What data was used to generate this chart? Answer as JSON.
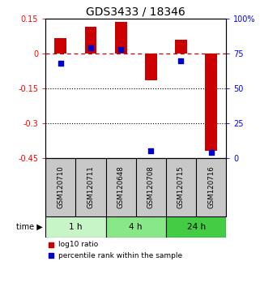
{
  "title": "GDS3433 / 18346",
  "samples": [
    "GSM120710",
    "GSM120711",
    "GSM120648",
    "GSM120708",
    "GSM120715",
    "GSM120716"
  ],
  "log10_ratio": [
    0.065,
    0.115,
    0.135,
    -0.115,
    0.06,
    -0.42
  ],
  "percentile_rank": [
    68,
    79,
    78,
    5,
    70,
    4
  ],
  "ylim_left": [
    -0.45,
    0.15
  ],
  "ylim_right": [
    0,
    100
  ],
  "yticks_left": [
    0.15,
    0.0,
    -0.15,
    -0.3,
    -0.45
  ],
  "ytick_labels_left": [
    "0.15",
    "0",
    "-0.15",
    "-0.3",
    "-0.45"
  ],
  "yticks_right": [
    100,
    75,
    50,
    25,
    0
  ],
  "ytick_labels_right": [
    "100%",
    "75",
    "50",
    "25",
    "0"
  ],
  "time_groups": [
    {
      "label": "1 h",
      "start": 0,
      "end": 2,
      "color": "#c8f5c8"
    },
    {
      "label": "4 h",
      "start": 2,
      "end": 4,
      "color": "#88e888"
    },
    {
      "label": "24 h",
      "start": 4,
      "end": 6,
      "color": "#44cc44"
    }
  ],
  "bar_color": "#cc0000",
  "dot_color": "#0000cc",
  "bar_width": 0.4,
  "dot_size": 18,
  "hline_color": "#cc0000",
  "dotted_line_color": "#000000",
  "legend_red_label": "log10 ratio",
  "legend_blue_label": "percentile rank within the sample",
  "time_label": "time",
  "bg_color": "#ffffff",
  "sample_box_color": "#c8c8c8",
  "title_fontsize": 10,
  "tick_fontsize": 7
}
